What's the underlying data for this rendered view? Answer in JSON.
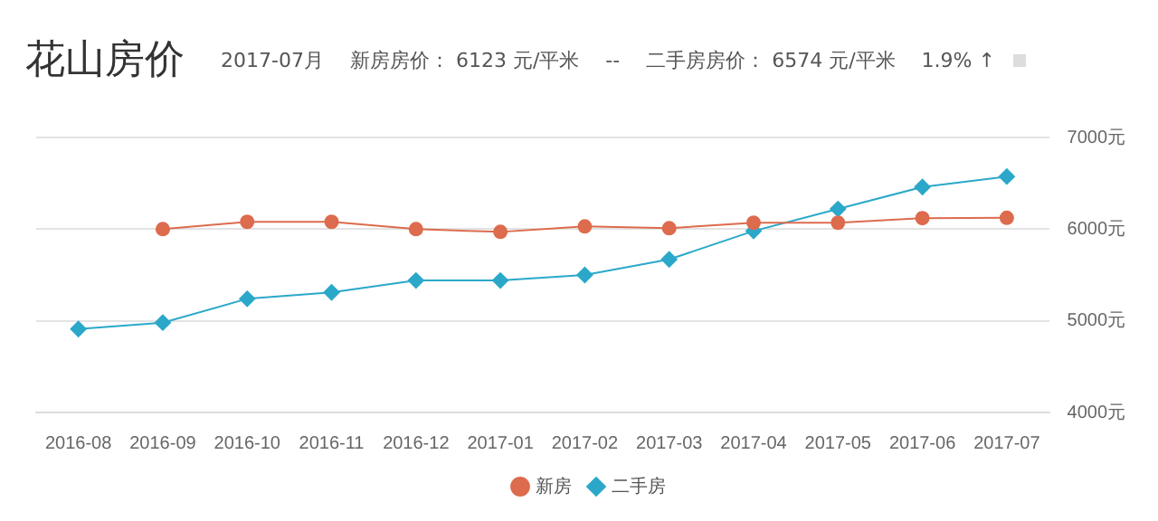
{
  "chart_data": {
    "type": "line",
    "title": "花山房价",
    "subtitle": "2017-07月　 新房房价： 6123 元/平米 　--　 二手房房价： 6574 元/平米 　1.9% ↑",
    "categories": [
      "2016-08",
      "2016-09",
      "2016-10",
      "2016-11",
      "2016-12",
      "2017-01",
      "2017-02",
      "2017-03",
      "2017-04",
      "2017-05",
      "2017-06",
      "2017-07"
    ],
    "series": [
      {
        "name": "新房",
        "color": "#dd6b4d",
        "marker": "circle",
        "values": [
          null,
          6000,
          6080,
          6080,
          6000,
          5970,
          6030,
          6010,
          6070,
          6070,
          6120,
          6123
        ]
      },
      {
        "name": "二手房",
        "color": "#2ba8c9",
        "marker": "diamond",
        "values": [
          4910,
          4980,
          5240,
          5310,
          5440,
          5440,
          5500,
          5670,
          5980,
          6220,
          6460,
          6574
        ]
      }
    ],
    "ylim": [
      4000,
      7000
    ],
    "yticks": [
      {
        "value": 4000,
        "label": "4000元"
      },
      {
        "value": 5000,
        "label": "5000元"
      },
      {
        "value": 6000,
        "label": "6000元"
      },
      {
        "value": 7000,
        "label": "7000元"
      }
    ],
    "grid": "y",
    "legend": "bottom"
  }
}
